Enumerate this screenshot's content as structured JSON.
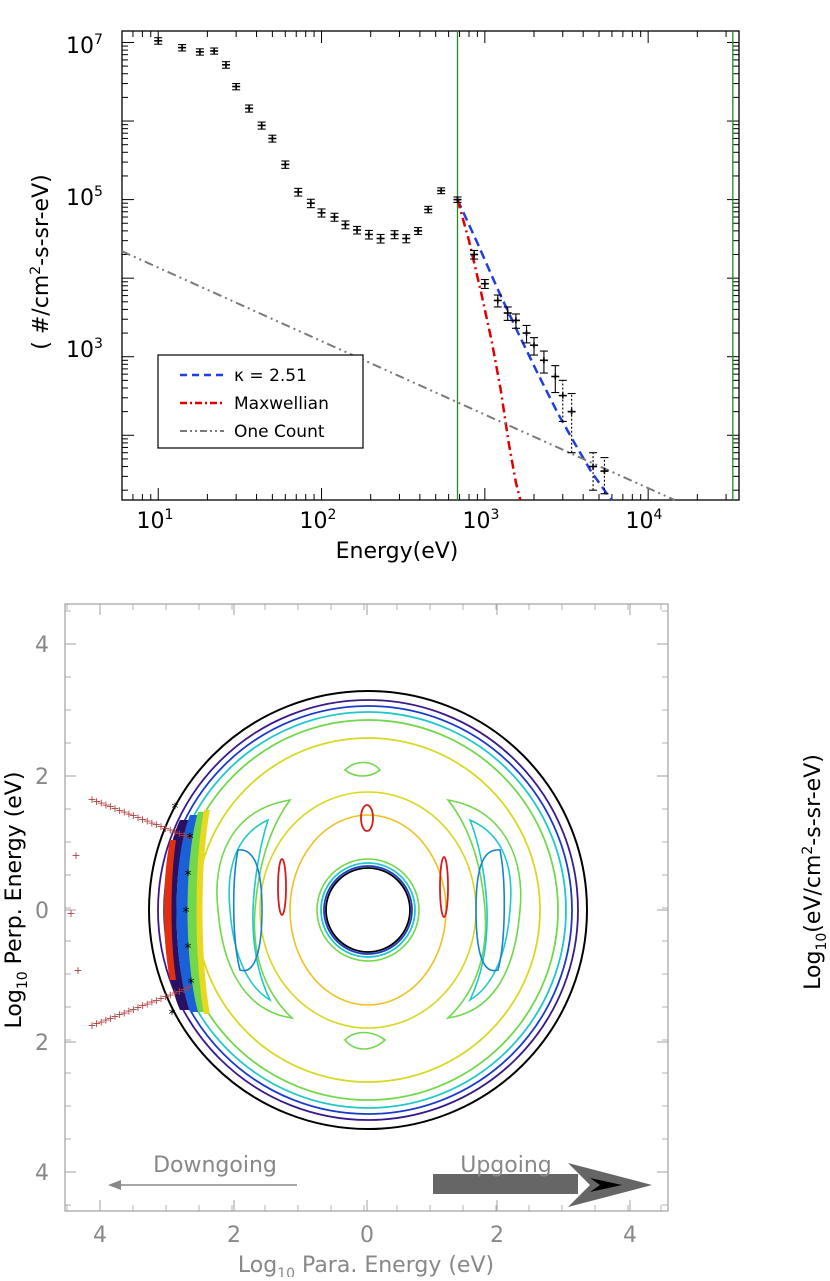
{
  "chart_data": [
    {
      "type": "scatter",
      "title": "",
      "xlabel": "Energy(eV)",
      "ylabel_parts": [
        "( #/cm",
        "2",
        "-s-sr-eV)"
      ],
      "xscale": "log",
      "yscale": "log",
      "xlim": [
        6,
        36000
      ],
      "ylim": [
        15,
        14000000
      ],
      "x_tick_labels": [
        {
          "base": "10",
          "exp": "1"
        },
        {
          "base": "10",
          "exp": "2"
        },
        {
          "base": "10",
          "exp": "3"
        },
        {
          "base": "10",
          "exp": "4"
        }
      ],
      "y_tick_labels": [
        {
          "base": "10",
          "exp": "3"
        },
        {
          "base": "10",
          "exp": "5"
        },
        {
          "base": "10",
          "exp": "7"
        }
      ],
      "vertical_lines": [
        680,
        33000
      ],
      "vertical_line_color": "#228b22",
      "data_points": {
        "x": [
          10,
          14,
          18,
          22,
          26,
          30,
          36,
          43,
          50,
          60,
          72,
          86,
          100,
          120,
          140,
          165,
          195,
          230,
          280,
          330,
          390,
          450,
          540,
          680,
          860,
          1000,
          1200,
          1380,
          1550,
          1800,
          2000,
          2300,
          2700,
          3000,
          3400,
          4600,
          5400
        ],
        "y": [
          10500000,
          8600000,
          7600000,
          7800000,
          5200000,
          2750000,
          1450000,
          880000,
          600000,
          280000,
          125000,
          90000,
          68000,
          60000,
          48000,
          41000,
          36000,
          32000,
          36000,
          32000,
          40000,
          75000,
          130000,
          100000,
          20000,
          8500,
          5200,
          3600,
          2900,
          2000,
          1400,
          900,
          560,
          320,
          200,
          40,
          35
        ],
        "lower_bound": [
          9500000,
          7800000,
          6900000,
          7100000,
          4700000,
          2500000,
          1300000,
          790000,
          540000,
          250000,
          111000,
          79000,
          60000,
          53000,
          42500,
          36500,
          31500,
          28000,
          31800,
          28200,
          36000,
          68000,
          119000,
          92000,
          17500,
          7400,
          4300,
          2900,
          2300,
          1500,
          1050,
          620,
          350,
          150,
          60,
          20,
          18
        ],
        "upper_bound": [
          11500000,
          9400000,
          8300000,
          8500000,
          5700000,
          3000000,
          1600000,
          970000,
          660000,
          310000,
          139000,
          101000,
          76000,
          67000,
          53500,
          45500,
          40500,
          36000,
          40200,
          35800,
          44000,
          82000,
          141000,
          108000,
          22500,
          9600,
          6100,
          4300,
          3500,
          2500,
          1750,
          1180,
          770,
          500,
          340,
          60,
          52
        ]
      },
      "series": [
        {
          "name": "κ = 2.51",
          "color": "#1f3fe0",
          "style": "dashed",
          "x": [
            680,
            900,
            1200,
            1600,
            2100,
            2800,
            3600,
            4500,
            5600,
            6000
          ],
          "y": [
            100000,
            28000,
            7200,
            2000,
            620,
            190,
            75,
            34,
            18,
            15
          ]
        },
        {
          "name": "Maxwellian",
          "color": "#e00000",
          "style": "dashdot",
          "x": [
            680,
            800,
            950,
            1100,
            1250,
            1400,
            1550,
            1650
          ],
          "y": [
            100000,
            30000,
            6500,
            1600,
            380,
            80,
            25,
            15
          ]
        },
        {
          "name": "One Count",
          "color": "#7a7a7a",
          "style": "dashdotdot",
          "x": [
            6,
            14500
          ],
          "y": [
            22000,
            15
          ]
        }
      ],
      "legend_placement": "lower-left"
    },
    {
      "type": "contour",
      "title": "",
      "xlabel_parts": [
        "Log",
        "10",
        " Para. Energy (eV)"
      ],
      "ylabel_parts": [
        "Log",
        "10",
        " Perp. Energy (eV)"
      ],
      "colorbar_label_parts": [
        "Log",
        "10",
        "(eV/cm",
        "2",
        "-s-sr-eV)"
      ],
      "x_ticks": [
        "4",
        "2",
        "0",
        "2",
        "4"
      ],
      "y_ticks": [
        "4",
        "2",
        "0",
        "2",
        "4"
      ],
      "xlim": [
        -4.5,
        4.5
      ],
      "ylim": [
        -4.5,
        4.5
      ],
      "annotations": {
        "downgoing": "Downgoing",
        "upgoing": "Upgoing"
      },
      "contour_colors": [
        "#000000",
        "#3a1a8a",
        "#1a3acc",
        "#1a80d0",
        "#20c8c8",
        "#70d84a",
        "#d8d820",
        "#f0c020",
        "#f07020",
        "#d81c1c"
      ],
      "marker_color": "#b04040",
      "marker_labels": [
        "+",
        "+",
        "+"
      ]
    }
  ]
}
